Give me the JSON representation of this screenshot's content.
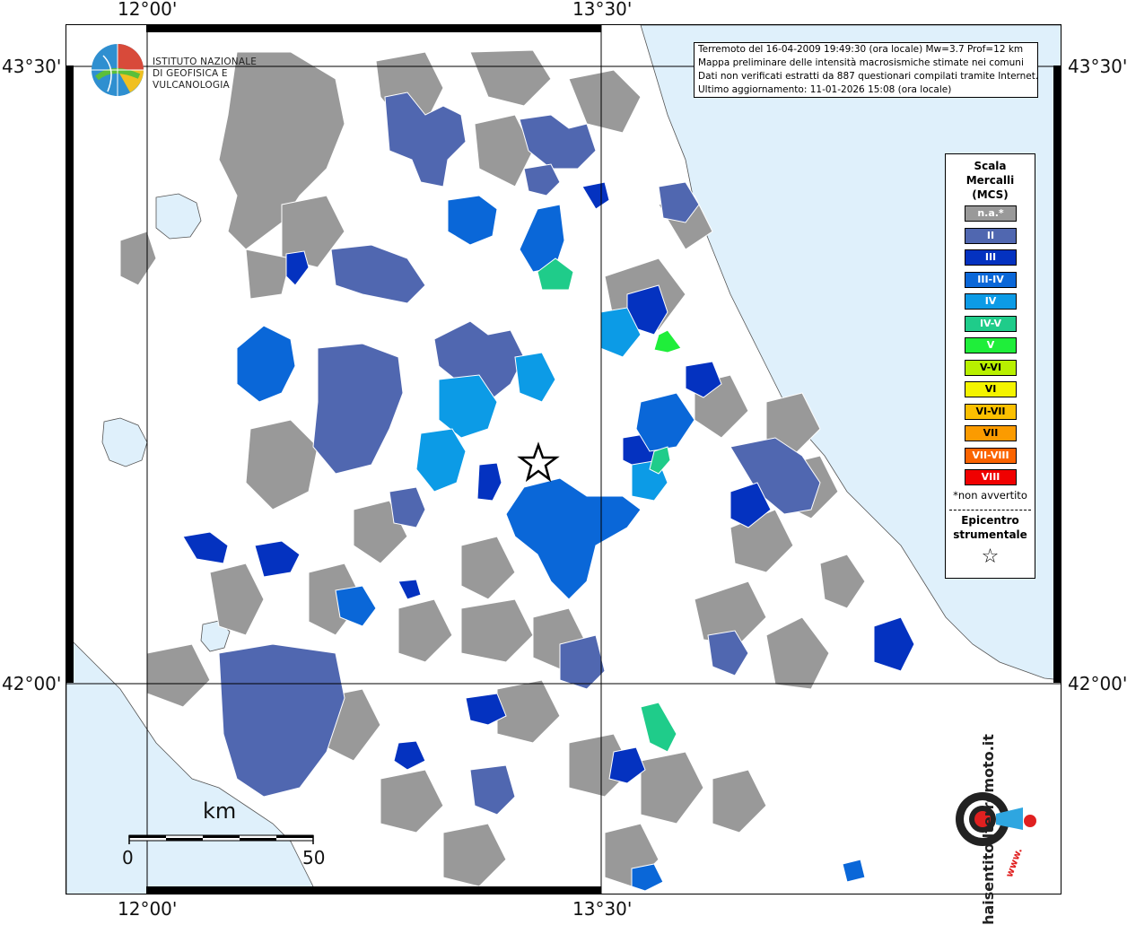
{
  "coords": {
    "top_left": "12°00'",
    "top_right": "13°30'",
    "bottom_left": "12°00'",
    "bottom_right": "13°30'",
    "left_top": "43°30'",
    "right_top": "43°30'",
    "left_bottom": "42°00'",
    "right_bottom": "42°00'"
  },
  "info": {
    "line1": "Terremoto del 16-04-2009 19:49:30 (ora locale) Mw=3.7 Prof=12 km",
    "line2": "Mappa preliminare delle intensità macrosismiche stimate nei comuni",
    "line3": "Dati non verificati estratti da 887 questionari compilati tramite Internet.",
    "line4": "Ultimo aggiornamento: 11-01-2026 15:08 (ora locale)"
  },
  "ingv": {
    "line1": "ISTITUTO NAZIONALE",
    "line2": "DI GEOFISICA E VULCANOLOGIA"
  },
  "legend": {
    "title1": "Scala",
    "title2": "Mercalli",
    "title3": "(MCS)",
    "items": [
      {
        "label": "n.a.*",
        "color": "#999999"
      },
      {
        "label": "II",
        "color": "#5067b0"
      },
      {
        "label": "III",
        "color": "#0432c0"
      },
      {
        "label": "III-IV",
        "color": "#0a67d8"
      },
      {
        "label": "IV",
        "color": "#0c9be6"
      },
      {
        "label": "IV-V",
        "color": "#1fcc8a"
      },
      {
        "label": "V",
        "color": "#1fee3a"
      },
      {
        "label": "V-VI",
        "color": "#b8f000"
      },
      {
        "label": "VI",
        "color": "#f4f400"
      },
      {
        "label": "VI-VII",
        "color": "#fbc000"
      },
      {
        "label": "VII",
        "color": "#fb9b00"
      },
      {
        "label": "VII-VIII",
        "color": "#fb6400"
      },
      {
        "label": "VIII",
        "color": "#f00000"
      }
    ],
    "note": "*non avvertito",
    "epicenter1": "Epicentro",
    "epicenter2": "strumentale",
    "epicenter_symbol": "☆"
  },
  "scalebar": {
    "unit": "km",
    "start": "0",
    "end": "50"
  },
  "brand": {
    "text": "haisentitoilterremoto.it",
    "url_text": "www."
  },
  "colors": {
    "sea": "#dff0fb",
    "grey": "#999999",
    "ii": "#5067b0",
    "iii": "#0432c0",
    "iii_iv": "#0a67d8",
    "iv": "#0c9be6",
    "iv_v": "#1fcc8a",
    "v": "#1fee3a"
  }
}
